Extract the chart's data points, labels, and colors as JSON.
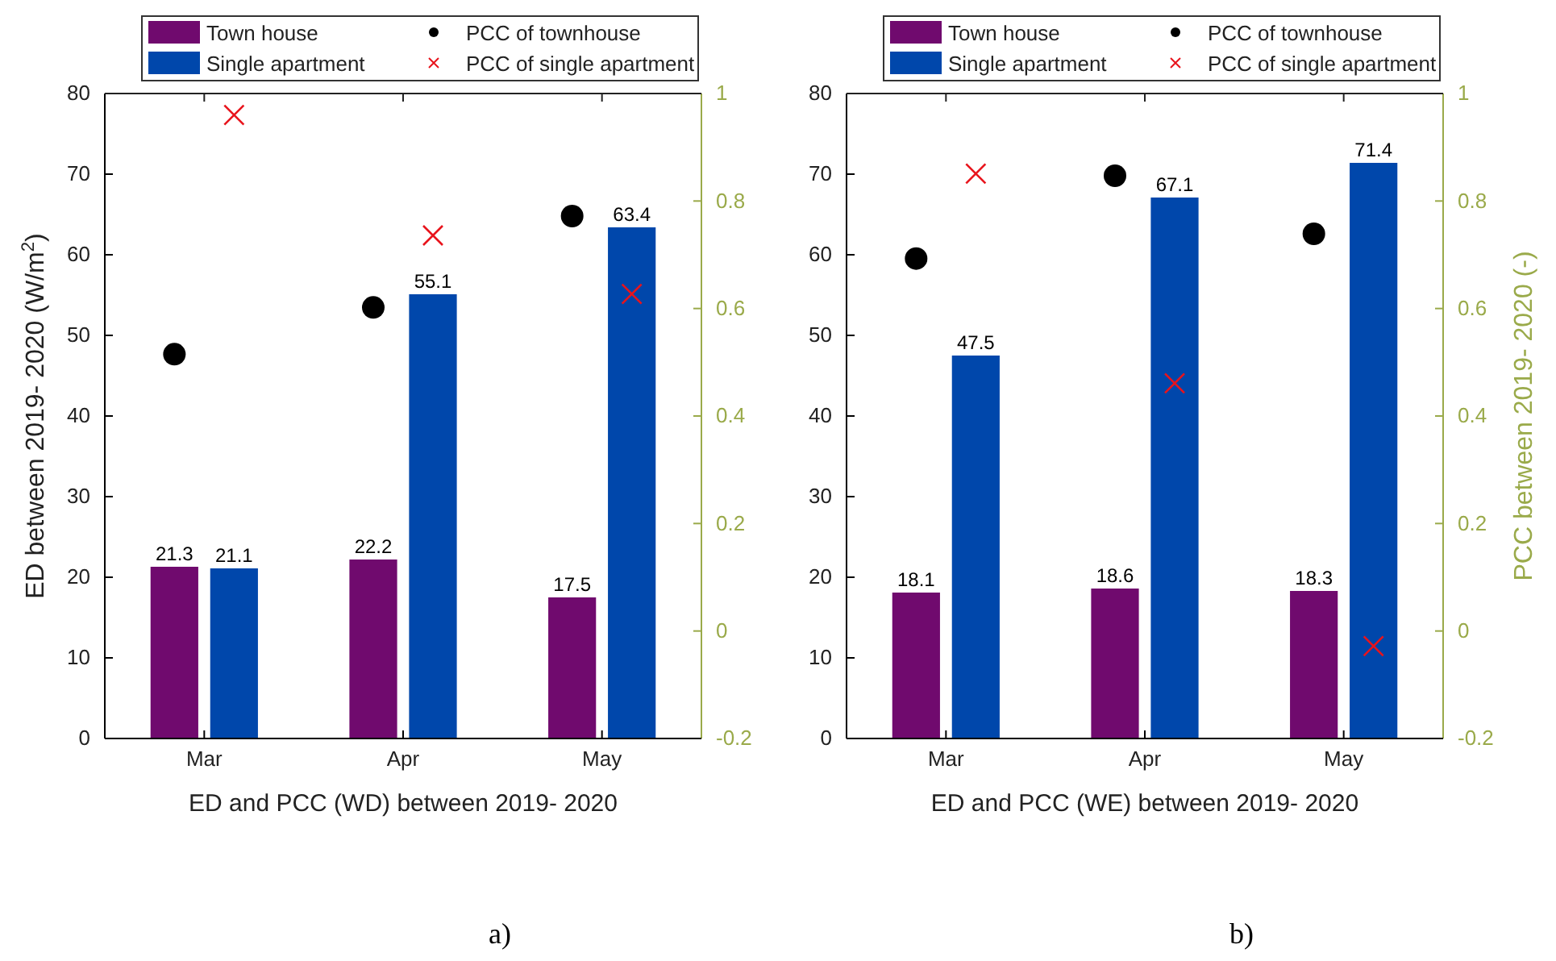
{
  "chart_data": [
    {
      "type": "bar",
      "xlabel": "ED and PCC (WD) between 2019- 2020",
      "ylabel": "ED between 2019- 2020 (W/m$^{2}$)",
      "categories": [
        "Mar",
        "Apr",
        "May"
      ],
      "series": [
        {
          "name": "Town house",
          "color": "#700a6e",
          "values": [
            21.3,
            22.2,
            17.5
          ],
          "value_labels": [
            "21.3",
            "22.2",
            "17.5"
          ]
        },
        {
          "name": "Single apartment",
          "color": "#0047ab",
          "values": [
            21.1,
            55.1,
            63.4
          ],
          "value_labels": [
            "21.1",
            "55.1",
            "63.4"
          ]
        },
        {
          "name": "PCC of townhouse",
          "type": "scatter",
          "axis": "y2",
          "marker": "circle",
          "color": "#000000",
          "values": [
            0.515,
            0.602,
            0.772
          ]
        },
        {
          "name": "PCC of single apartment",
          "type": "scatter",
          "axis": "y2",
          "marker": "cross",
          "color": "#e8141c",
          "values": [
            0.96,
            0.736,
            0.627
          ]
        }
      ],
      "ylim": [
        0,
        80
      ],
      "yticks": [
        0,
        10,
        20,
        30,
        40,
        50,
        60,
        70,
        80
      ],
      "y2lim": [
        -0.2,
        1
      ],
      "y2ticks": [
        -0.2,
        0,
        0.2,
        0.4,
        0.6,
        0.8,
        1
      ],
      "legend": "top",
      "grid": false,
      "annotations": [
        "a)"
      ]
    },
    {
      "type": "bar",
      "xlabel": "ED and PCC (WE) between 2019- 2020",
      "y2label": "PCC between 2019- 2020 (-)",
      "categories": [
        "Mar",
        "Apr",
        "May"
      ],
      "series": [
        {
          "name": "Town house",
          "color": "#700a6e",
          "values": [
            18.1,
            18.6,
            18.3
          ],
          "value_labels": [
            "18.1",
            "18.6",
            "18.3"
          ]
        },
        {
          "name": "Single apartment",
          "color": "#0047ab",
          "values": [
            47.5,
            67.1,
            71.4
          ],
          "value_labels": [
            "47.5",
            "67.1",
            "71.4"
          ]
        },
        {
          "name": "PCC of townhouse",
          "type": "scatter",
          "axis": "y2",
          "marker": "circle",
          "color": "#000000",
          "values": [
            0.693,
            0.847,
            0.739
          ]
        },
        {
          "name": "PCC of single apartment",
          "type": "scatter",
          "axis": "y2",
          "marker": "cross",
          "color": "#e8141c",
          "values": [
            0.851,
            0.461,
            -0.028
          ]
        }
      ],
      "ylim": [
        0,
        80
      ],
      "yticks": [
        0,
        10,
        20,
        30,
        40,
        50,
        60,
        70,
        80
      ],
      "y2lim": [
        -0.2,
        1
      ],
      "y2ticks": [
        -0.2,
        0,
        0.2,
        0.4,
        0.6,
        0.8,
        1
      ],
      "legend": "top",
      "grid": false,
      "annotations": [
        "b)"
      ]
    }
  ]
}
